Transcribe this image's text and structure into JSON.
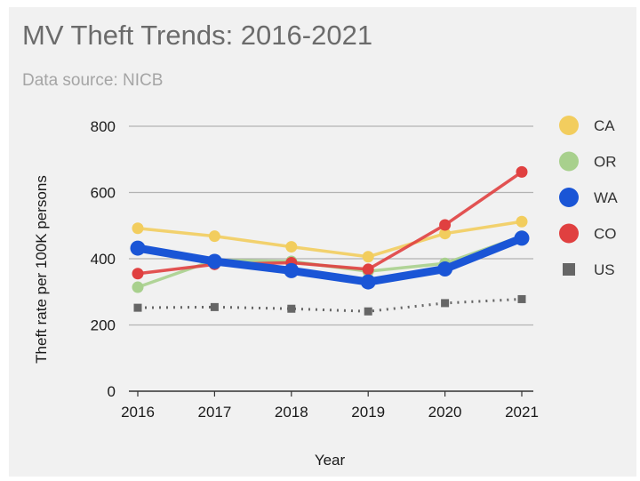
{
  "chart_data": {
    "type": "line",
    "title": "MV Theft Trends:  2016-2021",
    "subtitle": "Data source:  NICB",
    "xlabel": "Year",
    "ylabel": "Theft rate per 100K persons",
    "x": [
      "2016",
      "2017",
      "2018",
      "2019",
      "2020",
      "2021"
    ],
    "ylim": [
      0,
      800
    ],
    "yticks": [
      0,
      200,
      400,
      600,
      800
    ],
    "grid": true,
    "legend_position": "right",
    "series": [
      {
        "name": "CA",
        "color": "#f2cd5e",
        "marker": "circle",
        "style": "solid",
        "emphasis": false,
        "values": [
          492,
          468,
          436,
          406,
          476,
          512
        ]
      },
      {
        "name": "OR",
        "color": "#a8d08d",
        "marker": "circle",
        "style": "solid",
        "emphasis": false,
        "values": [
          314,
          396,
          392,
          362,
          386,
          468
        ]
      },
      {
        "name": "WA",
        "color": "#1a55d6",
        "marker": "circle",
        "style": "solid",
        "emphasis": true,
        "values": [
          432,
          392,
          364,
          330,
          369,
          462
        ]
      },
      {
        "name": "CO",
        "color": "#e04040",
        "marker": "circle",
        "style": "solid",
        "emphasis": false,
        "values": [
          355,
          383,
          388,
          368,
          502,
          662
        ]
      },
      {
        "name": "US",
        "color": "#666666",
        "marker": "square",
        "style": "dotted",
        "emphasis": false,
        "values": [
          252,
          254,
          249,
          241,
          266,
          278
        ]
      }
    ]
  }
}
